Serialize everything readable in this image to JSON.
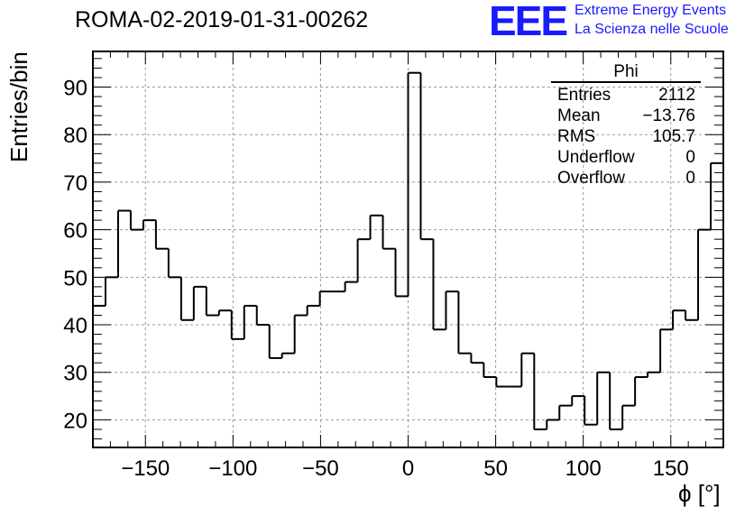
{
  "header": {
    "title": "ROMA-02-2019-01-31-00262",
    "logo_text": "EEE",
    "logo_line1": "Extreme Energy Events",
    "logo_line2": "La Scienza nelle Scuole"
  },
  "stats": {
    "title": "Phi",
    "rows": [
      {
        "label": "Entries",
        "value": "2112"
      },
      {
        "label": "Mean",
        "value": "−13.76"
      },
      {
        "label": "RMS",
        "value": "105.7"
      },
      {
        "label": "Underflow",
        "value": "0"
      },
      {
        "label": "Overflow",
        "value": "0"
      }
    ]
  },
  "chart_data": {
    "type": "histogram",
    "title": "ROMA-02-2019-01-31-00262",
    "xlabel": "ϕ [°]",
    "ylabel": "Entries/bin",
    "xlim": [
      -180,
      180
    ],
    "ylim": [
      14.2,
      97.5
    ],
    "grid": true,
    "bin_width": 7.2,
    "bin_edges_start": -180,
    "values": [
      44,
      50,
      64,
      60,
      62,
      56,
      50,
      41,
      48,
      42,
      43,
      37,
      44,
      40,
      33,
      34,
      42,
      44,
      47,
      47,
      49,
      58,
      63,
      56,
      46,
      93,
      58,
      39,
      47,
      34,
      32,
      29,
      27,
      27,
      34,
      18,
      20,
      23,
      25,
      19,
      30,
      18,
      23,
      29,
      30,
      39,
      43,
      41,
      60,
      74
    ],
    "x_ticks": [
      -150,
      -100,
      -50,
      0,
      50,
      100,
      150
    ],
    "x_tick_labels": [
      "−150",
      "−100",
      "−50",
      "0",
      "50",
      "100",
      "150"
    ],
    "y_ticks": [
      20,
      30,
      40,
      50,
      60,
      70,
      80,
      90
    ],
    "y_tick_labels": [
      "20",
      "30",
      "40",
      "50",
      "60",
      "70",
      "80",
      "90"
    ]
  },
  "colors": {
    "line": "#000000",
    "grid": "#9a9a9a",
    "logo": "#1a1aff"
  }
}
